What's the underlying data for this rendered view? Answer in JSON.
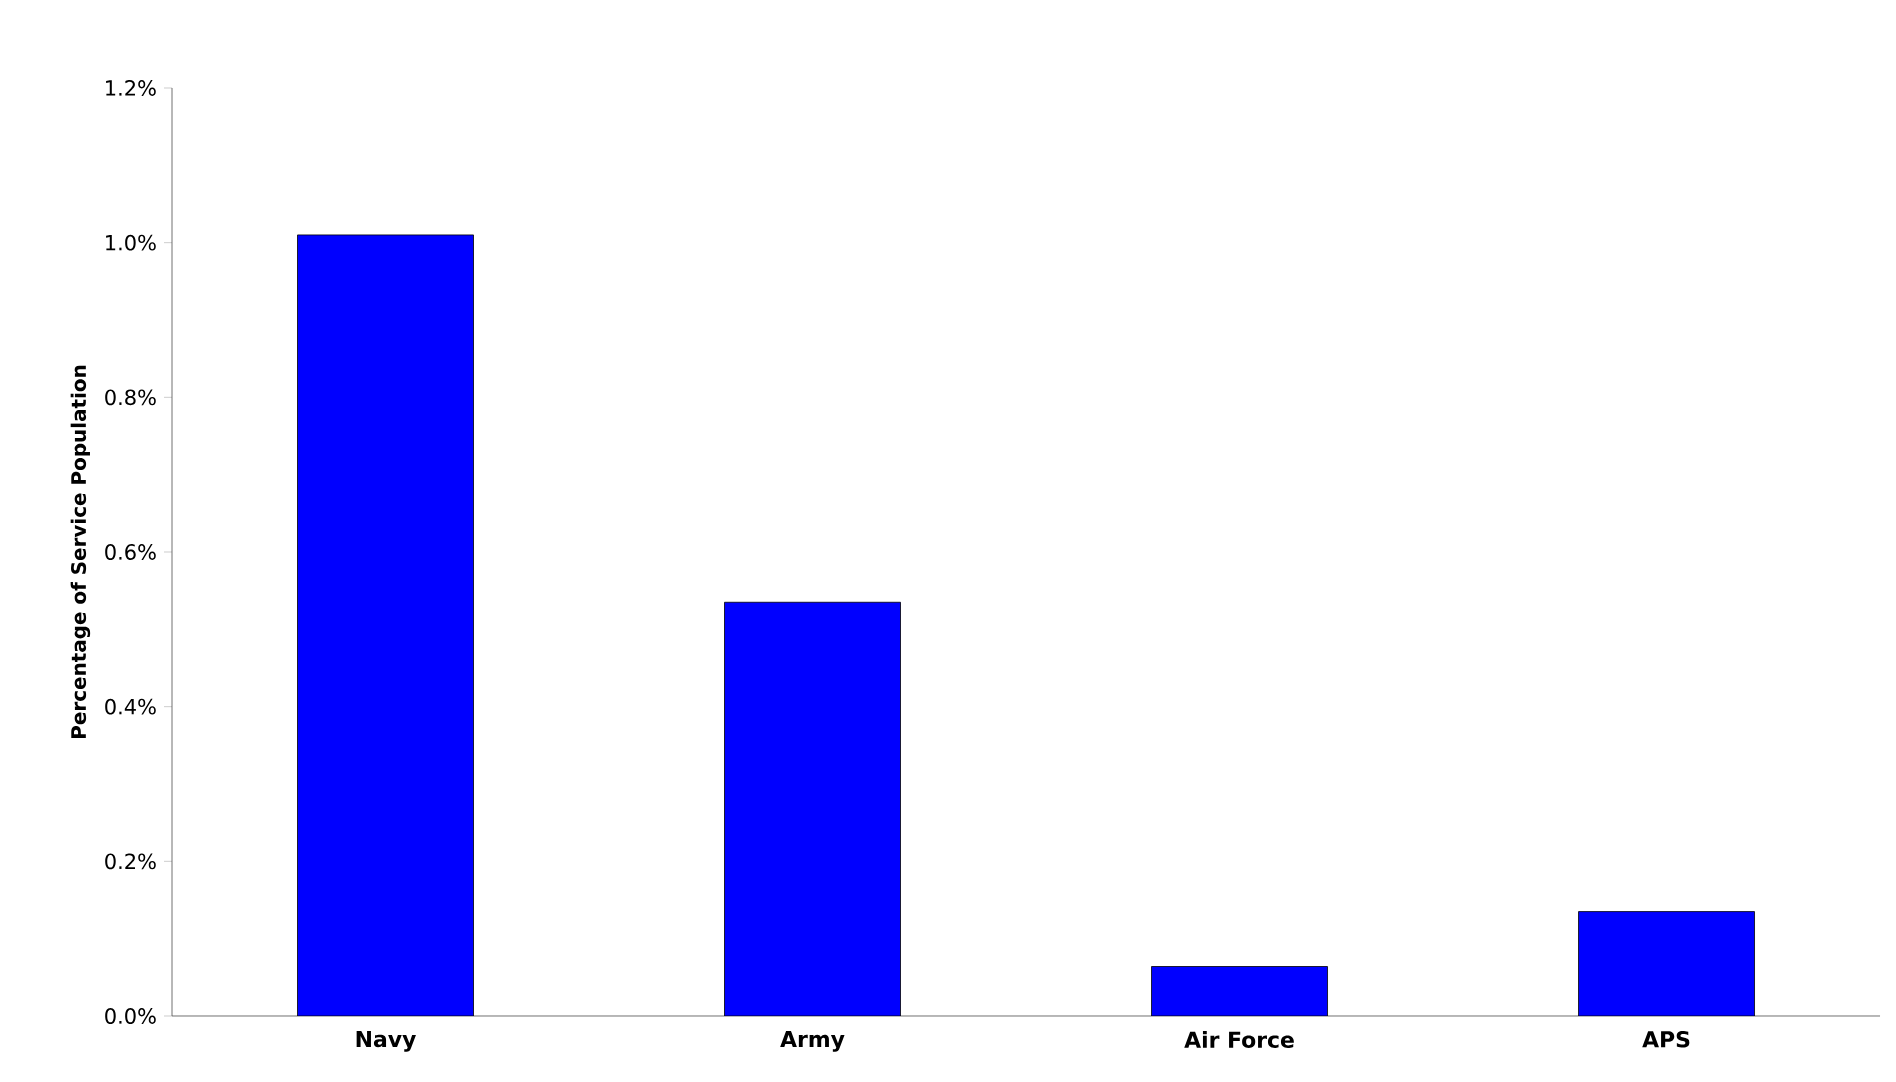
{
  "chart_data": {
    "type": "bar",
    "ylabel": "Percentage of Service Population",
    "categories": [
      "Navy",
      "Army",
      "Air Force",
      "APS"
    ],
    "values": [
      1.01,
      0.535,
      0.064,
      0.135
    ],
    "color": "#0000ff",
    "ylim": [
      0,
      1.2
    ],
    "yticks": [
      {
        "value": 0,
        "label": "0.0%"
      },
      {
        "value": 0.2,
        "label": "0.2%"
      },
      {
        "value": 0.4,
        "label": "0.4%"
      },
      {
        "value": 0.6,
        "label": "0.6%"
      },
      {
        "value": 0.8,
        "label": "0.8%"
      },
      {
        "value": 1.0,
        "label": "1.0%"
      },
      {
        "value": 1.2,
        "label": "1.2%"
      }
    ],
    "grid": false
  }
}
